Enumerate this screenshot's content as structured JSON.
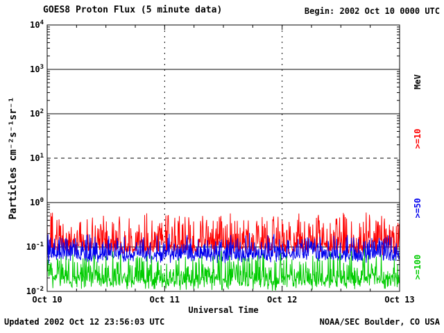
{
  "header": {
    "title": "GOES8 Proton Flux (5 minute data)",
    "begin": "Begin: 2002 Oct 10 0000 UTC"
  },
  "footer": {
    "updated": "Updated 2002 Oct 12 23:56:03 UTC",
    "credit": "NOAA/SEC Boulder, CO USA"
  },
  "chart_data": {
    "type": "line",
    "title": "GOES8 Proton Flux (5 minute data)",
    "xlabel": "Universal Time",
    "ylabel": "Particles cm⁻²s⁻¹sr⁻¹",
    "right_axis_label": "MeV",
    "x_ticks": [
      "Oct 10",
      "Oct 11",
      "Oct 12",
      "Oct 13"
    ],
    "x_days": 3,
    "points_per_day": 288,
    "y_exponents": [
      4,
      3,
      2,
      1,
      0,
      -1,
      -2
    ],
    "ylim": [
      0.01,
      10000
    ],
    "grid": {
      "h_solid_exponents": [
        3,
        2,
        0,
        -1
      ],
      "h_dashed_exponents": [
        1
      ],
      "v_dashed_days": [
        1,
        2
      ]
    },
    "series": [
      {
        "name": ">=10",
        "color": "#FF0000",
        "log_base": -1.06,
        "log_jitter": 0.15,
        "spike_amp": 0.8
      },
      {
        "name": ">=50",
        "color": "#0000EE",
        "log_base": -1.25,
        "log_jitter": 0.13,
        "spike_amp": 0.5
      },
      {
        "name": ">=100",
        "color": "#00CC00",
        "log_base": -1.8,
        "log_jitter": 0.2,
        "spike_amp": 0.6
      }
    ]
  }
}
